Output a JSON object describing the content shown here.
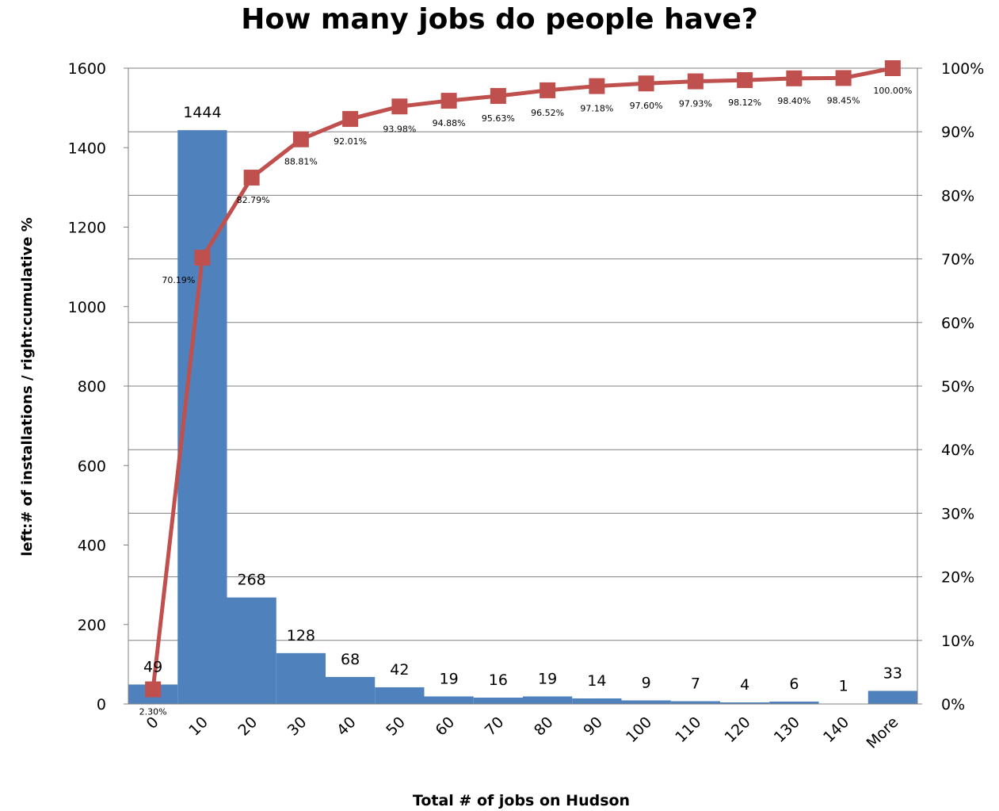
{
  "chart_data": {
    "type": "bar",
    "title": "How many jobs do people have?",
    "xlabel": "Total # of jobs on Hudson",
    "ylabel": "left:# of installations / right:cumulative %",
    "categories": [
      "0",
      "10",
      "20",
      "30",
      "40",
      "50",
      "60",
      "70",
      "80",
      "90",
      "100",
      "110",
      "120",
      "130",
      "140",
      "More"
    ],
    "ylim": [
      0,
      1600
    ],
    "y_ticks": [
      "0",
      "200",
      "400",
      "600",
      "800",
      "1000",
      "1200",
      "1400",
      "1600"
    ],
    "y2lim": [
      0,
      100
    ],
    "y2_ticks": [
      "0%",
      "10%",
      "20%",
      "30%",
      "40%",
      "50%",
      "60%",
      "70%",
      "80%",
      "90%",
      "100%"
    ],
    "grid": true,
    "series": [
      {
        "type": "bar",
        "color": "#4F81BD",
        "values": [
          49,
          1444,
          268,
          128,
          68,
          42,
          19,
          16,
          19,
          14,
          9,
          7,
          4,
          6,
          1,
          33
        ],
        "labels": [
          "49",
          "1444",
          "268",
          "128",
          "68",
          "42",
          "19",
          "16",
          "19",
          "14",
          "9",
          "7",
          "4",
          "6",
          "1",
          "33"
        ]
      },
      {
        "type": "line",
        "axis": "right",
        "color": "#C0504D",
        "values": [
          2.3,
          70.19,
          82.79,
          88.81,
          92.01,
          93.98,
          94.88,
          95.63,
          96.52,
          97.18,
          97.6,
          97.93,
          98.12,
          98.4,
          98.45,
          100.0
        ],
        "labels": [
          "2.30%",
          "70.19%",
          "82.79%",
          "88.81%",
          "92.01%",
          "93.98%",
          "94.88%",
          "95.63%",
          "96.52%",
          "97.18%",
          "97.60%",
          "97.93%",
          "98.12%",
          "98.40%",
          "98.45%",
          "100.00%"
        ]
      }
    ]
  }
}
